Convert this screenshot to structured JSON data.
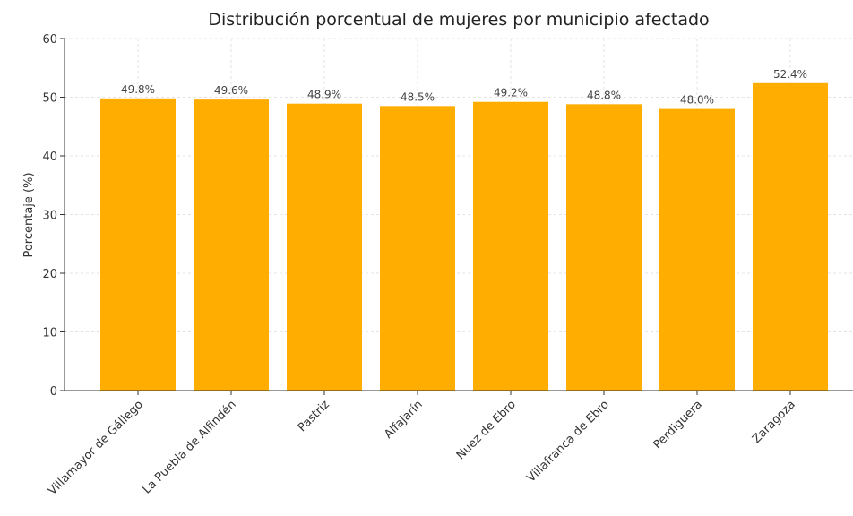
{
  "chart_data": {
    "type": "bar",
    "title": "Distribución porcentual de mujeres por municipio afectado",
    "ylabel": "Porcentaje (%)",
    "categories": [
      "Villamayor de Gállego",
      "La Puebla de Alfindén",
      "Pastriz",
      "Alfajarín",
      "Nuez de Ebro",
      "Villafranca de Ebro",
      "Perdiguera",
      "Zaragoza"
    ],
    "values": [
      49.8,
      49.6,
      48.9,
      48.5,
      49.2,
      48.8,
      48.0,
      52.4
    ],
    "value_labels": [
      "49.8%",
      "49.6%",
      "48.9%",
      "48.5%",
      "49.2%",
      "48.8%",
      "48.0%",
      "52.4%"
    ],
    "color": "#ffad00",
    "ylim": [
      0,
      60
    ],
    "yticks": [
      0,
      10,
      20,
      30,
      40,
      50,
      60
    ],
    "grid": true
  }
}
